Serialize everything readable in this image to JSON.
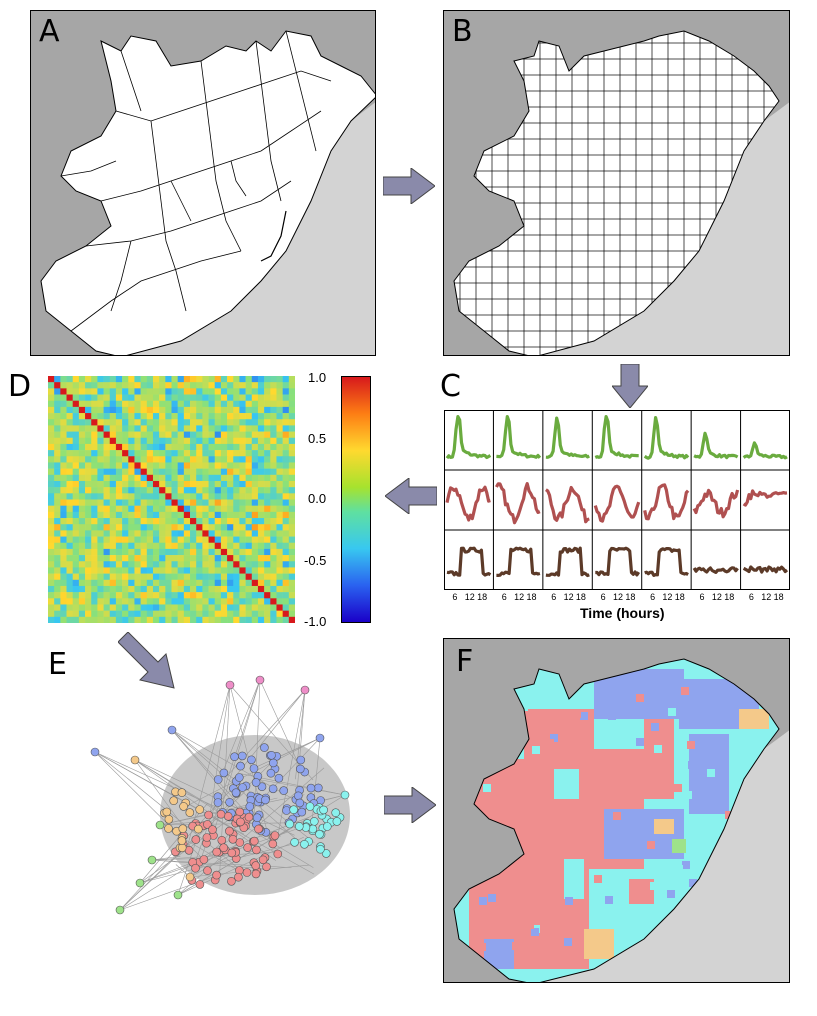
{
  "panels": {
    "a": {
      "label": "A"
    },
    "b": {
      "label": "B"
    },
    "c": {
      "label": "C",
      "xlabel": "Time (hours)",
      "tick_labels": [
        "6",
        "12",
        "18"
      ]
    },
    "d": {
      "label": "D",
      "colorbar_ticks": [
        "1.0",
        "0.5",
        "0.0",
        "-0.5",
        "-1.0"
      ]
    },
    "e": {
      "label": "E"
    },
    "f": {
      "label": "F"
    }
  },
  "colors": {
    "background_land": "#ffffff",
    "outside": "#a6a6a6",
    "sea": "#d3d3d3",
    "arrow": "#8a8aaa",
    "series_green": "#6aab3f",
    "series_red": "#b05050",
    "series_brown": "#5c3a28",
    "cluster_blue": "#8fa4ee",
    "cluster_red": "#ef8e8e",
    "cluster_cyan": "#8af2ee",
    "cluster_orange": "#f4c98a",
    "cluster_green": "#9ee28a",
    "cluster_pink": "#ee8ec8"
  }
}
